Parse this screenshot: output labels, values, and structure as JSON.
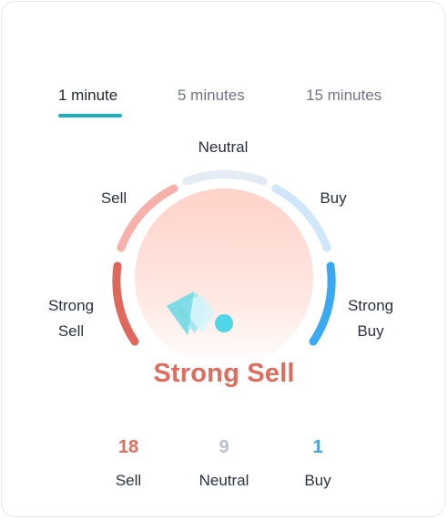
{
  "tabs": [
    {
      "label": "1 minute",
      "active": true
    },
    {
      "label": "5 minutes",
      "active": false
    },
    {
      "label": "15 minutes",
      "active": false
    }
  ],
  "gauge": {
    "labels": {
      "strong_sell_1": "Strong",
      "strong_sell_2": "Sell",
      "sell": "Sell",
      "neutral": "Neutral",
      "buy": "Buy",
      "strong_buy_1": "Strong",
      "strong_buy_2": "Buy"
    },
    "result": "Strong Sell"
  },
  "summary": [
    {
      "count": "18",
      "label": "Sell",
      "color": "#e06c5e"
    },
    {
      "count": "9",
      "label": "Neutral",
      "color": "#b9bec9"
    },
    {
      "count": "1",
      "label": "Buy",
      "color": "#38a8f0"
    }
  ],
  "colors": {
    "strong_sell": "#e0675c",
    "sell": "#f7b1aa",
    "neutral": "#e4ebf5",
    "buy": "#cfe6fb",
    "strong_buy": "#3aa9f2",
    "accent": "#1bb0c4"
  }
}
